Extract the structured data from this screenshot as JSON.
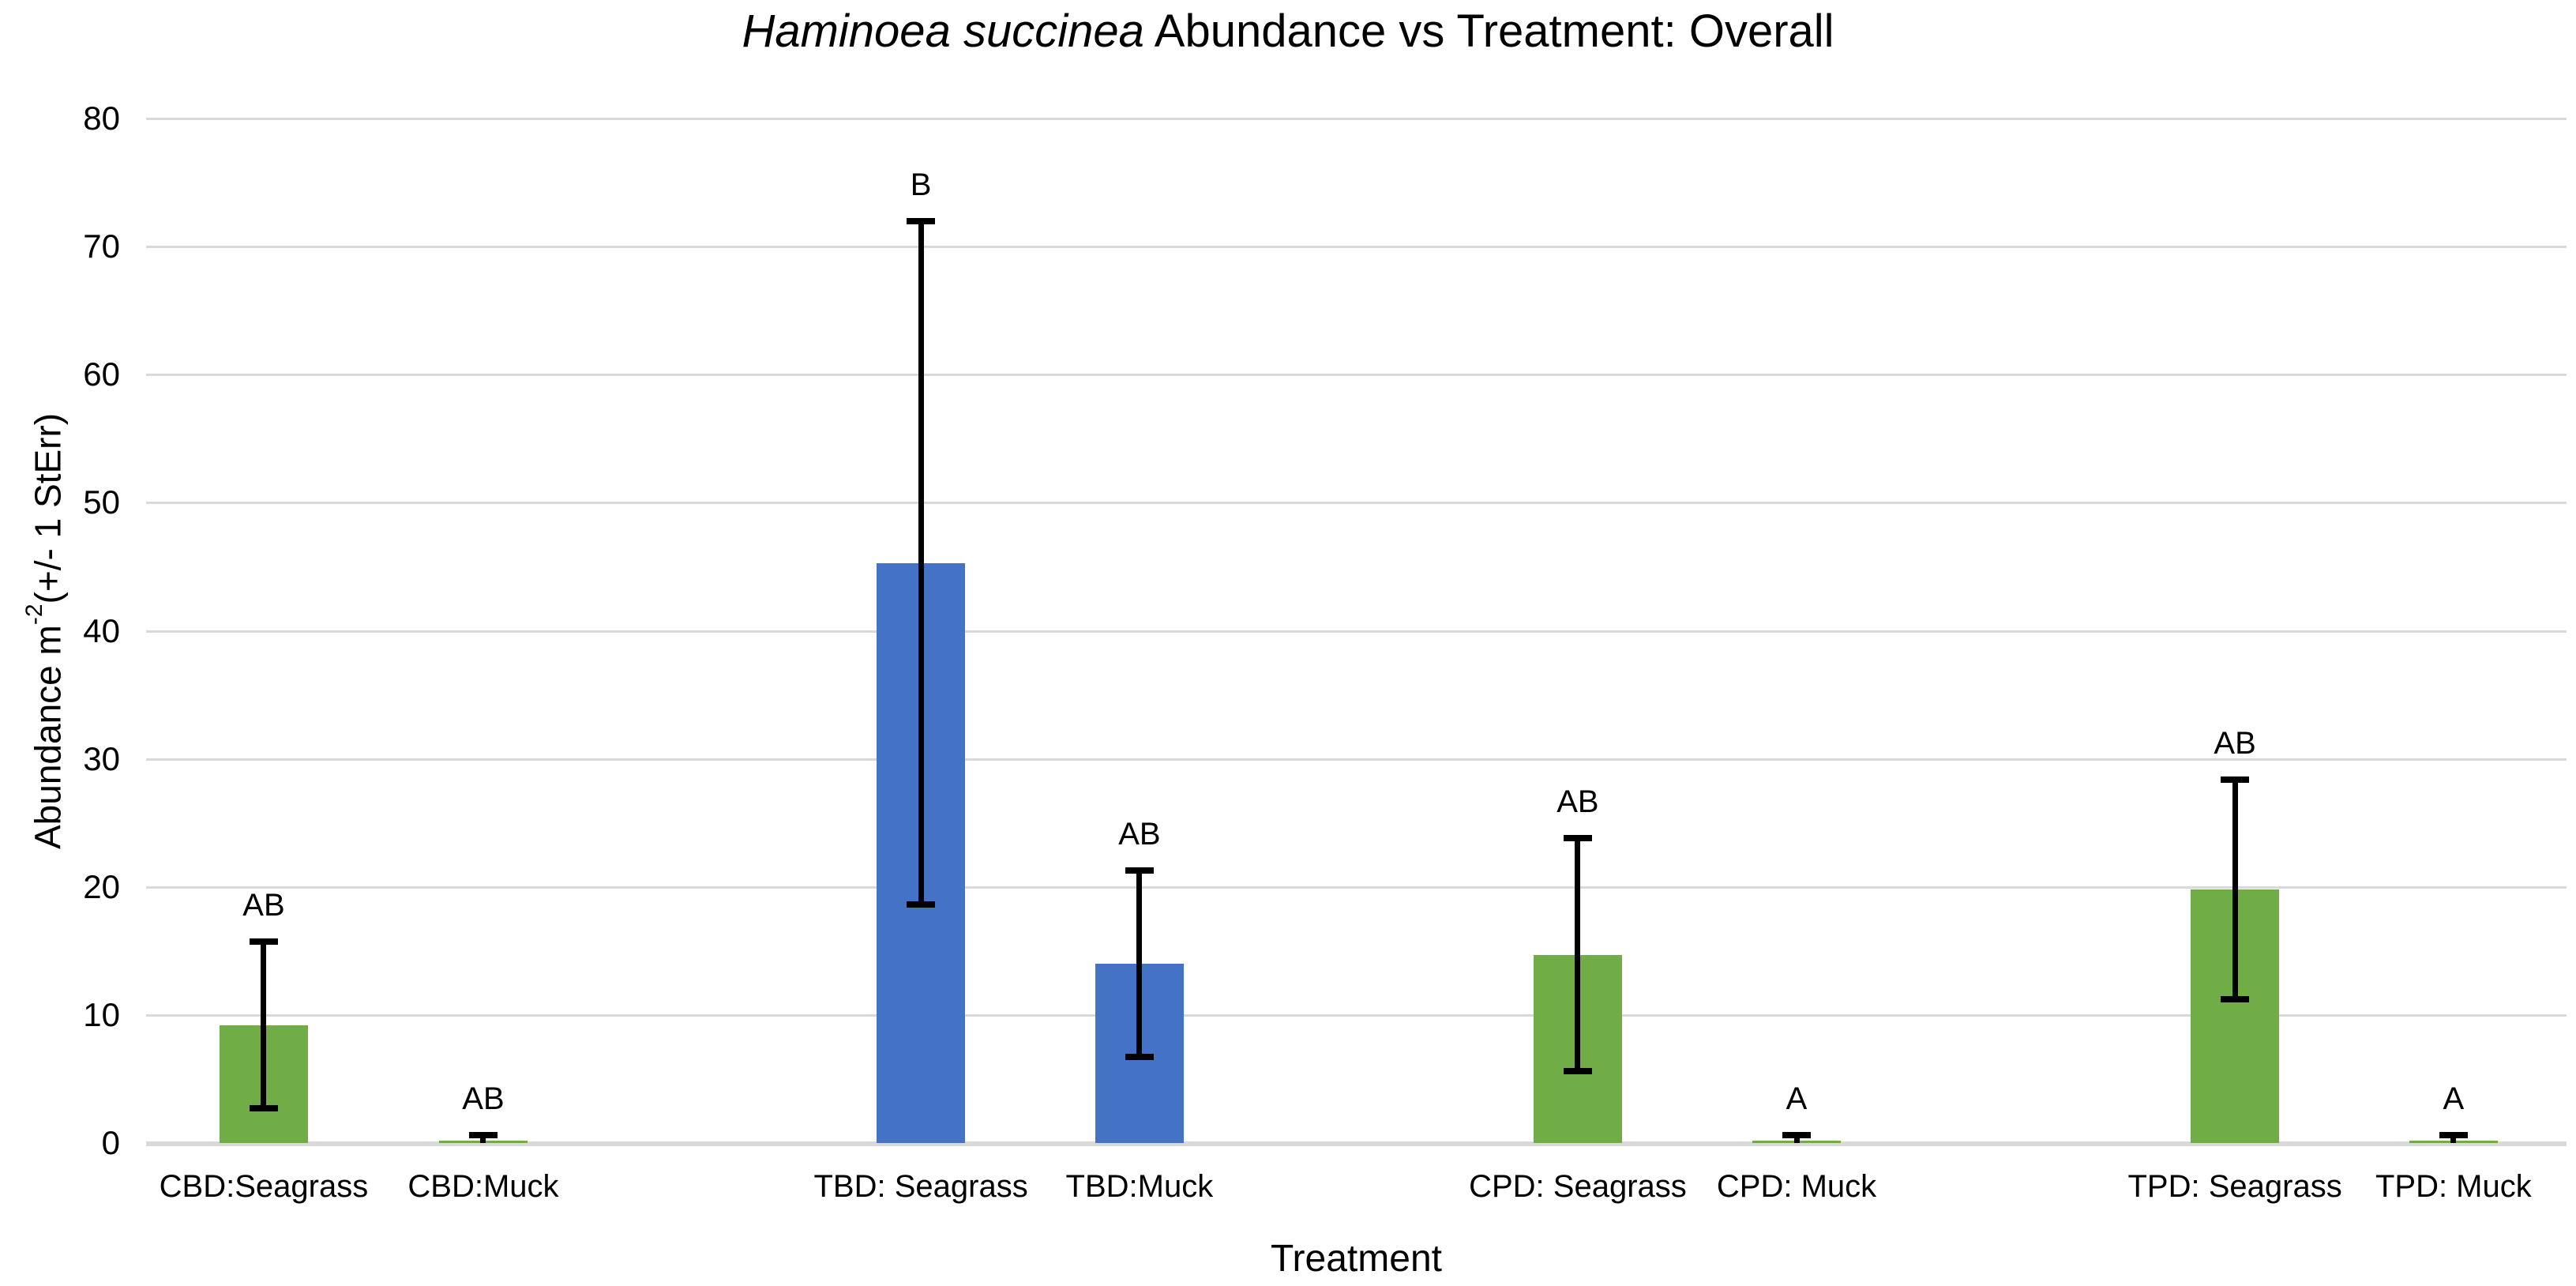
{
  "chart_data": {
    "type": "bar",
    "title": {
      "italic_part": "Haminoea succinea",
      "rest_part": " Abundance vs Treatment: Overall"
    },
    "xlabel": "Treatment",
    "ylabel": {
      "prefix": "Abundance m",
      "superscript": "-2",
      "suffix": "(+/- 1 StErr)"
    },
    "ylim": [
      0,
      80
    ],
    "yticks": [
      0,
      10,
      20,
      30,
      40,
      50,
      60,
      70,
      80
    ],
    "grid": "horizontal",
    "legend": "none",
    "categories": [
      "CBD:Seagrass",
      "CBD:Muck",
      "TBD: Seagrass",
      "TBD:Muck",
      "CPD: Seagrass",
      "CPD: Muck",
      "TPD: Seagrass",
      "TPD: Muck"
    ],
    "values": [
      9.2,
      0.2,
      45.3,
      14.0,
      14.7,
      0.2,
      19.8,
      0.2
    ],
    "errors": [
      6.5,
      0.4,
      26.7,
      7.3,
      9.1,
      0.4,
      8.6,
      0.4
    ],
    "sig_letters": [
      "AB",
      "AB",
      "B",
      "AB",
      "AB",
      "A",
      "AB",
      "A"
    ],
    "bar_colors": [
      "#70AD47",
      "#70AD47",
      "#4472C4",
      "#4472C4",
      "#70AD47",
      "#70AD47",
      "#70AD47",
      "#70AD47"
    ],
    "x_centers_pct": [
      4.86,
      13.93,
      32.01,
      41.04,
      59.15,
      68.19,
      86.3,
      95.33
    ],
    "colors": {
      "green": "#70AD47",
      "blue": "#4472C4",
      "gridline": "#D9D9D9",
      "error_bar": "#000000",
      "text": "#000000",
      "background": "#FFFFFF"
    }
  }
}
